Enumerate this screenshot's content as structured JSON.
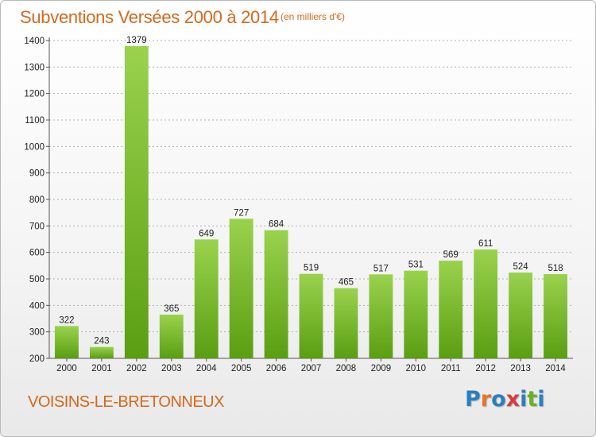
{
  "header": {
    "title": "Subventions Versées 2000 à 2014",
    "subtitle": "(en milliers d'€)"
  },
  "footer": {
    "commune": "VOISINS-LE-BRETONNEUX",
    "logo": {
      "text": "Proxiti",
      "letter_colors": [
        "#2a7fc1",
        "#e8732a",
        "#2a7fc1",
        "#d83c3c",
        "#2a7fc1",
        "#6ab023",
        "#2a7fc1"
      ]
    }
  },
  "colors": {
    "bar_top": "#9ad24e",
    "bar_bottom": "#5a9e12",
    "grid": "#b0b0b0",
    "title": "#d2691e"
  },
  "chart_data": {
    "type": "bar",
    "categories": [
      "2000",
      "2001",
      "2002",
      "2003",
      "2004",
      "2005",
      "2006",
      "2007",
      "2008",
      "2009",
      "2010",
      "2011",
      "2012",
      "2013",
      "2014"
    ],
    "values": [
      322,
      243,
      1379,
      365,
      649,
      727,
      684,
      519,
      465,
      517,
      531,
      569,
      611,
      524,
      518
    ],
    "title": "Subventions Versées 2000 à 2014",
    "subtitle": "(en milliers d'€)",
    "ylim": [
      200,
      1400
    ],
    "yticks": [
      200,
      300,
      400,
      500,
      600,
      700,
      800,
      900,
      1000,
      1100,
      1200,
      1300,
      1400
    ],
    "grid": true
  }
}
